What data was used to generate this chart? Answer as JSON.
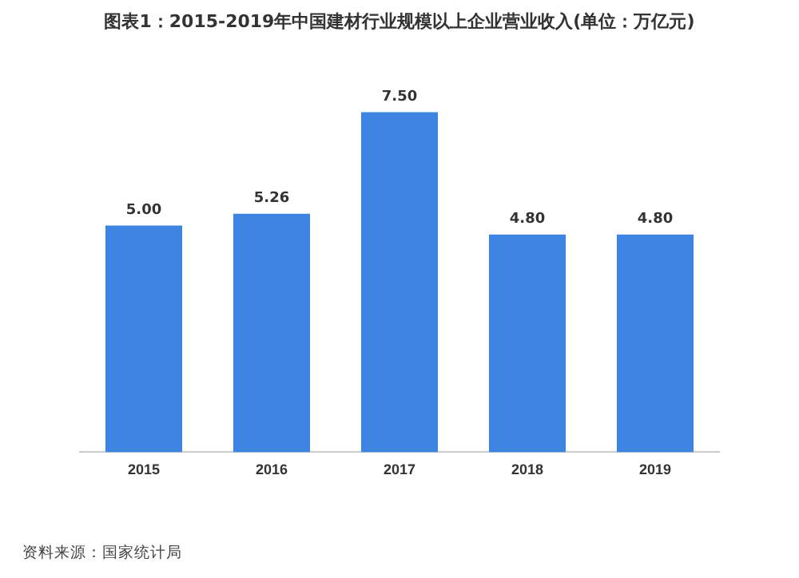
{
  "chart_data": {
    "type": "bar",
    "title": "图表1：2015-2019年中国建材行业规模以上企业营业收入(单位：万亿元)",
    "categories": [
      "2015",
      "2016",
      "2017",
      "2018",
      "2019"
    ],
    "values": [
      5.0,
      5.26,
      7.5,
      4.8,
      4.8
    ],
    "value_labels": [
      "5.00",
      "5.26",
      "7.50",
      "4.80",
      "4.80"
    ],
    "color": "#3d85e0",
    "annotations": [
      "资料来源：国家统计局"
    ],
    "grid": false,
    "legend": false
  }
}
